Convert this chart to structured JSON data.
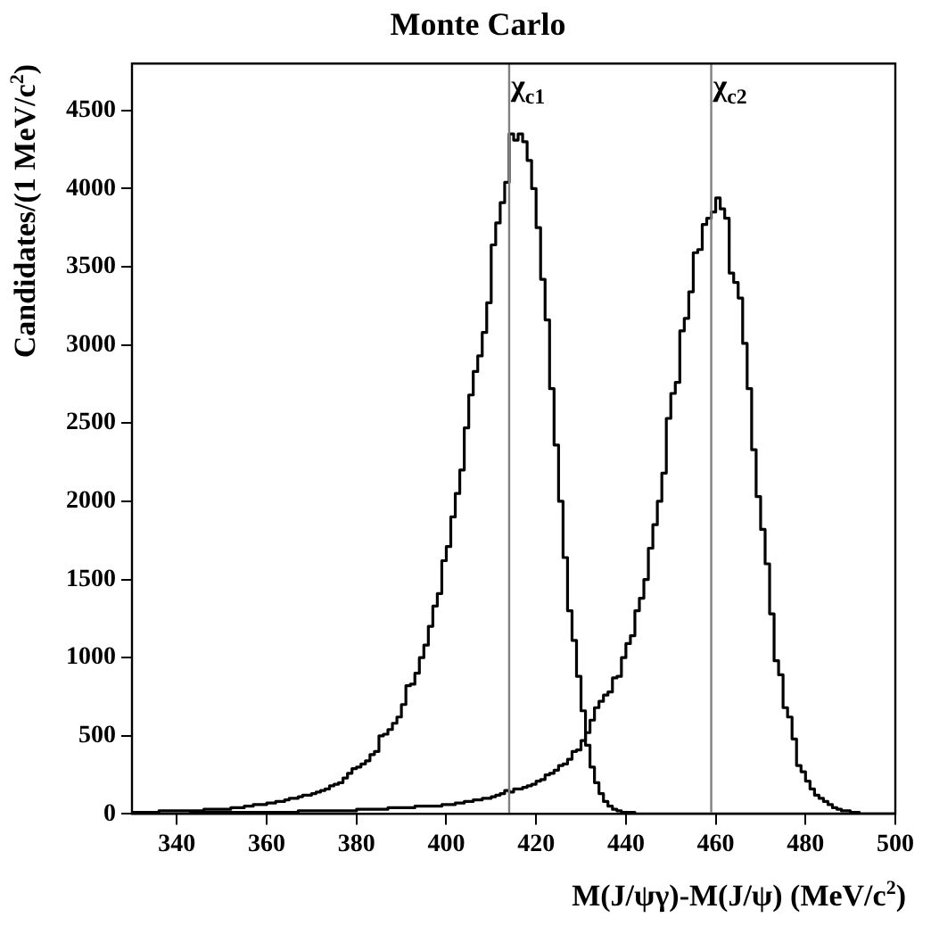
{
  "chart_data": {
    "type": "histogram",
    "title": "Monte Carlo",
    "xlabel": "M(J/ψγ)-M(J/ψ) (MeV/c$^{2}$)",
    "ylabel": "Candidates/(1  MeV/c$^{2}$)",
    "bins": [
      330,
      331,
      332,
      333,
      334,
      335,
      336,
      337,
      338,
      339,
      340,
      341,
      342,
      343,
      344,
      345,
      346,
      347,
      348,
      349,
      350,
      351,
      352,
      353,
      354,
      355,
      356,
      357,
      358,
      359,
      360,
      361,
      362,
      363,
      364,
      365,
      366,
      367,
      368,
      369,
      370,
      371,
      372,
      373,
      374,
      375,
      376,
      377,
      378,
      379,
      380,
      381,
      382,
      383,
      384,
      385,
      386,
      387,
      388,
      389,
      390,
      391,
      392,
      393,
      394,
      395,
      396,
      397,
      398,
      399,
      400,
      401,
      402,
      403,
      404,
      405,
      406,
      407,
      408,
      409,
      410,
      411,
      412,
      413,
      414,
      415,
      416,
      417,
      418,
      419,
      420,
      421,
      422,
      423,
      424,
      425,
      426,
      427,
      428,
      429,
      430,
      431,
      432,
      433,
      434,
      435,
      436,
      437,
      438,
      439,
      440,
      441,
      442,
      443,
      444,
      445,
      446,
      447,
      448,
      449,
      450,
      451,
      452,
      453,
      454,
      455,
      456,
      457,
      458,
      459,
      460,
      461,
      462,
      463,
      464,
      465,
      466,
      467,
      468,
      469,
      470,
      471,
      472,
      473,
      474,
      475,
      476,
      477,
      478,
      479,
      480,
      481,
      482,
      483,
      484,
      485,
      486,
      487,
      488,
      489,
      490,
      491,
      492,
      493,
      494,
      495,
      496,
      497,
      498,
      499,
      500
    ],
    "series": [
      {
        "color": "#000000",
        "values": [
          10,
          10,
          10,
          10,
          10,
          10,
          20,
          20,
          20,
          20,
          20,
          20,
          20,
          20,
          20,
          20,
          30,
          30,
          30,
          30,
          30,
          30,
          40,
          40,
          40,
          50,
          50,
          60,
          60,
          60,
          70,
          70,
          80,
          80,
          90,
          100,
          100,
          110,
          120,
          120,
          130,
          140,
          150,
          160,
          180,
          190,
          200,
          230,
          260,
          290,
          300,
          320,
          340,
          380,
          400,
          500,
          510,
          540,
          580,
          620,
          700,
          820,
          830,
          900,
          1000,
          1080,
          1200,
          1330,
          1410,
          1620,
          1710,
          1900,
          2050,
          2200,
          2470,
          2680,
          2830,
          2930,
          3080,
          3270,
          3640,
          3780,
          3910,
          4040,
          4350,
          4310,
          4350,
          4300,
          4180,
          4000,
          3750,
          3420,
          3160,
          2720,
          2360,
          2000,
          1640,
          1300,
          1110,
          880,
          660,
          440,
          300,
          200,
          130,
          80,
          50,
          30,
          20,
          10,
          10,
          10,
          0,
          0,
          0,
          0,
          0,
          0,
          0,
          0,
          0,
          0,
          0,
          0,
          0,
          0,
          0,
          0,
          0,
          0,
          0,
          0,
          0,
          0,
          0,
          0,
          0,
          0,
          0,
          0,
          0,
          0,
          0,
          0,
          0,
          0,
          0,
          0,
          0,
          0,
          0,
          0,
          0,
          0,
          0,
          0,
          0,
          0,
          0,
          0,
          0,
          0,
          0,
          0,
          0,
          0,
          0,
          0,
          0,
          0
        ]
      },
      {
        "color": "#000000",
        "values": [
          0,
          0,
          0,
          0,
          0,
          0,
          0,
          0,
          0,
          0,
          0,
          0,
          0,
          10,
          10,
          10,
          10,
          10,
          10,
          10,
          10,
          10,
          10,
          10,
          10,
          10,
          10,
          10,
          10,
          10,
          10,
          10,
          10,
          10,
          10,
          10,
          10,
          20,
          20,
          20,
          20,
          20,
          20,
          20,
          20,
          20,
          20,
          20,
          20,
          20,
          30,
          30,
          30,
          30,
          30,
          30,
          30,
          40,
          40,
          40,
          40,
          40,
          40,
          50,
          50,
          50,
          50,
          50,
          50,
          60,
          60,
          60,
          70,
          70,
          80,
          80,
          90,
          90,
          100,
          100,
          110,
          120,
          130,
          150,
          140,
          160,
          160,
          170,
          180,
          190,
          210,
          220,
          250,
          260,
          280,
          310,
          320,
          350,
          400,
          410,
          470,
          520,
          600,
          680,
          720,
          760,
          780,
          870,
          880,
          1000,
          1090,
          1140,
          1300,
          1380,
          1500,
          1700,
          1850,
          2000,
          2180,
          2530,
          2690,
          2760,
          3090,
          3170,
          3340,
          3590,
          3610,
          3770,
          3810,
          3850,
          3940,
          3870,
          3810,
          3460,
          3400,
          3300,
          3010,
          2720,
          2330,
          2030,
          1820,
          1600,
          1280,
          980,
          890,
          680,
          620,
          480,
          310,
          270,
          210,
          160,
          120,
          100,
          80,
          60,
          40,
          30,
          20,
          20,
          10,
          10,
          0,
          0,
          0,
          0,
          0,
          0,
          0,
          0
        ]
      }
    ],
    "xlim": [
      330,
      500
    ],
    "xticks": [
      340,
      360,
      380,
      400,
      420,
      440,
      460,
      480,
      500
    ],
    "ylim": [
      0,
      4800
    ],
    "yticks": [
      0,
      500,
      1000,
      1500,
      2000,
      2500,
      3000,
      3500,
      4000,
      4500
    ],
    "ref_lines": [
      {
        "axis": "x",
        "value": 414,
        "label": "χ$_{c1}$",
        "color": "#808080"
      },
      {
        "axis": "x",
        "value": 459,
        "label": "χ$_{c2}$",
        "color": "#808080"
      }
    ]
  }
}
